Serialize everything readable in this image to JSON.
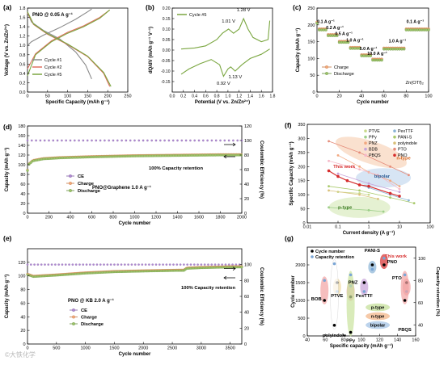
{
  "chart_data": [
    {
      "panel": "(a)",
      "type": "line",
      "annotation": "PNO @ 0.05 A g⁻¹",
      "xlabel": "Specific Capacity (mAh g⁻¹)",
      "ylabel": "Voltage (V vs. Zn/Zn²⁺)",
      "xlim": [
        0,
        250
      ],
      "ylim": [
        0,
        1.8
      ],
      "xticks": [
        "0",
        "50",
        "100",
        "150",
        "200",
        "250"
      ],
      "yticks": [
        "0.0",
        "0.2",
        "0.4",
        "0.6",
        "0.8",
        "1.0",
        "1.2",
        "1.4",
        "1.6",
        "1.8"
      ],
      "legend": [
        "Cycle #1",
        "Cycle #2",
        "Cycle #5"
      ],
      "series": [
        {
          "name": "Cycle #1",
          "color": "#8a8a8a",
          "charge": [
            [
              0,
              1.0
            ],
            [
              10,
              1.08
            ],
            [
              40,
              1.22
            ],
            [
              80,
              1.38
            ],
            [
              120,
              1.56
            ],
            [
              150,
              1.72
            ],
            [
              160,
              1.78
            ]
          ],
          "discharge": [
            [
              0,
              1.7
            ],
            [
              10,
              1.5
            ],
            [
              40,
              1.32
            ],
            [
              80,
              1.14
            ],
            [
              120,
              0.86
            ],
            [
              145,
              0.58
            ],
            [
              160,
              0.28
            ]
          ]
        },
        {
          "name": "Cycle #2",
          "color": "#e07060",
          "charge": [
            [
              0,
              0.5
            ],
            [
              20,
              0.82
            ],
            [
              60,
              1.1
            ],
            [
              100,
              1.28
            ],
            [
              140,
              1.42
            ],
            [
              180,
              1.6
            ],
            [
              205,
              1.76
            ]
          ],
          "discharge": [
            [
              0,
              1.7
            ],
            [
              15,
              1.45
            ],
            [
              50,
              1.24
            ],
            [
              100,
              1.02
            ],
            [
              150,
              0.76
            ],
            [
              190,
              0.4
            ],
            [
              205,
              0.12
            ]
          ]
        },
        {
          "name": "Cycle #5",
          "color": "#7aa640",
          "charge": [
            [
              0,
              0.35
            ],
            [
              20,
              0.8
            ],
            [
              60,
              1.08
            ],
            [
              100,
              1.26
            ],
            [
              140,
              1.4
            ],
            [
              180,
              1.58
            ],
            [
              205,
              1.76
            ]
          ],
          "discharge": [
            [
              0,
              1.72
            ],
            [
              15,
              1.46
            ],
            [
              50,
              1.25
            ],
            [
              100,
              1.03
            ],
            [
              150,
              0.77
            ],
            [
              190,
              0.42
            ],
            [
              208,
              0.12
            ]
          ]
        }
      ]
    },
    {
      "panel": "(b)",
      "type": "line",
      "legend": [
        "Cycle #5"
      ],
      "xlabel": "Potential (V vs. Zn/Zn²⁺)",
      "ylabel": "dQ/dV (mAh g⁻¹ V⁻¹)",
      "xlim": [
        0,
        1.8
      ],
      "ylim": [
        -0.2,
        0.2
      ],
      "xticks": [
        "0.0",
        "0.2",
        "0.4",
        "0.6",
        "0.8",
        "1.0",
        "1.2",
        "1.4",
        "1.6",
        "1.8"
      ],
      "yticks": [
        "-0.15",
        "-0.10",
        "-0.05",
        "0.00",
        "0.05",
        "0.10",
        "0.15",
        "0.20"
      ],
      "peaks": [
        "1.01 V",
        "1.28 V",
        "0.92 V",
        "1.13 V"
      ],
      "series": [
        {
          "name": "Cycle #5",
          "color": "#7aa640",
          "upper": [
            [
              0.16,
              0.005
            ],
            [
              0.4,
              0.01
            ],
            [
              0.6,
              0.02
            ],
            [
              0.8,
              0.05
            ],
            [
              0.9,
              0.08
            ],
            [
              1.01,
              0.1
            ],
            [
              1.1,
              0.08
            ],
            [
              1.2,
              0.1
            ],
            [
              1.28,
              0.15
            ],
            [
              1.36,
              0.1
            ],
            [
              1.45,
              0.06
            ],
            [
              1.6,
              0.04
            ],
            [
              1.72,
              0.05
            ],
            [
              1.75,
              0.14
            ]
          ],
          "lower": [
            [
              0.16,
              -0.115
            ],
            [
              0.3,
              -0.09
            ],
            [
              0.5,
              -0.065
            ],
            [
              0.7,
              -0.045
            ],
            [
              0.85,
              -0.07
            ],
            [
              0.92,
              -0.125
            ],
            [
              1.0,
              -0.09
            ],
            [
              1.05,
              -0.08
            ],
            [
              1.13,
              -0.1
            ],
            [
              1.25,
              -0.07
            ],
            [
              1.4,
              -0.04
            ],
            [
              1.6,
              -0.02
            ],
            [
              1.75,
              0.005
            ]
          ]
        }
      ]
    },
    {
      "panel": "(c)",
      "type": "scatter",
      "annotation": "Zn(OTf)₂",
      "xlabel": "Cycle number",
      "ylabel": "Capacity (mAh g⁻¹)",
      "xlim": [
        0,
        100
      ],
      "ylim": [
        0,
        250
      ],
      "xticks": [
        "0",
        "20",
        "40",
        "60",
        "80",
        "100"
      ],
      "yticks": [
        "0",
        "50",
        "100",
        "150",
        "200",
        "250"
      ],
      "legend": [
        "Charge",
        "Discharge"
      ],
      "rates": [
        {
          "label": "0.1 A g⁻¹",
          "start": 0,
          "end": 10,
          "capacity": 185
        },
        {
          "label": "0.2 A g⁻¹",
          "start": 10,
          "end": 20,
          "capacity": 168
        },
        {
          "label": "0.5 A g⁻¹",
          "start": 20,
          "end": 30,
          "capacity": 148
        },
        {
          "label": "1.0 A g⁻¹",
          "start": 30,
          "end": 40,
          "capacity": 130
        },
        {
          "label": "5.0 A g⁻¹",
          "start": 40,
          "end": 50,
          "capacity": 108
        },
        {
          "label": "10.0 A g⁻¹",
          "start": 50,
          "end": 60,
          "capacity": 95
        },
        {
          "label": "1.0 A g⁻¹",
          "start": 60,
          "end": 80,
          "capacity": 128
        },
        {
          "label": "0.1 A g⁻¹",
          "start": 80,
          "end": 100,
          "capacity": 185
        }
      ]
    },
    {
      "panel": "(d)",
      "type": "scatter",
      "annotation": "PNO@Graphene  1.0 A g⁻¹",
      "retention_label": "100% Capacity retention",
      "xlabel": "Cycle number",
      "ylabel": "Capacity (mAh g⁻¹)",
      "y2label": "Coulombic Efficiency (%)",
      "xlim": [
        0,
        2000
      ],
      "ylim": [
        0,
        180
      ],
      "y2lim": [
        0,
        120
      ],
      "xticks": [
        "0",
        "200",
        "400",
        "600",
        "800",
        "1000",
        "1200",
        "1400",
        "1600",
        "1800",
        "2000"
      ],
      "yticks": [
        "0",
        "20",
        "40",
        "60",
        "80",
        "100",
        "120",
        "140",
        "160",
        "180"
      ],
      "y2ticks": [
        "0",
        "20",
        "40",
        "60",
        "80",
        "100",
        "120"
      ],
      "legend": [
        "CE",
        "Charge",
        "Discharge"
      ],
      "ce": 100,
      "capacity": [
        [
          0,
          88
        ],
        [
          10,
          100
        ],
        [
          50,
          108
        ],
        [
          150,
          112
        ],
        [
          300,
          114
        ],
        [
          600,
          116
        ],
        [
          1000,
          118
        ],
        [
          1400,
          119
        ],
        [
          1800,
          120
        ],
        [
          2000,
          120
        ]
      ]
    },
    {
      "panel": "(e)",
      "type": "scatter",
      "annotation": "PNO @ KB  2.0 A g⁻¹",
      "retention_label": "100% Capacity retention",
      "xlabel": "Cycle number",
      "ylabel": "Capacity (mAh g⁻¹)",
      "y2label": "Coulombic Efficiency (%)",
      "xlim": [
        0,
        3700
      ],
      "ylim": [
        0,
        140
      ],
      "y2lim": [
        0,
        120
      ],
      "xticks": [
        "0",
        "500",
        "1000",
        "1500",
        "2000",
        "2500",
        "3000",
        "3500"
      ],
      "yticks": [
        "0",
        "20",
        "40",
        "60",
        "80",
        "100",
        "120"
      ],
      "y2ticks": [
        "0",
        "20",
        "40",
        "60",
        "80",
        "100"
      ],
      "legend": [
        "CE",
        "Charge",
        "Discharge"
      ],
      "ce": 100,
      "capacity": [
        [
          0,
          102
        ],
        [
          100,
          99
        ],
        [
          500,
          101
        ],
        [
          1000,
          104
        ],
        [
          1500,
          106
        ],
        [
          2000,
          107
        ],
        [
          2600,
          108
        ],
        [
          2700,
          108
        ],
        [
          2750,
          111
        ],
        [
          3000,
          112
        ],
        [
          3500,
          113
        ],
        [
          3700,
          113
        ]
      ]
    },
    {
      "panel": "(f)",
      "type": "scatter",
      "xlabel": "Current density (A g⁻¹)",
      "ylabel": "Specific Capacity (mAh g⁻¹)",
      "xscale": "log",
      "xlim": [
        0.01,
        100
      ],
      "ylim": [
        0,
        350
      ],
      "xticks": [
        "0.01",
        "0.1",
        "1",
        "10",
        "100"
      ],
      "yticks": [
        "0",
        "50",
        "100",
        "150",
        "200",
        "250",
        "300",
        "350"
      ],
      "legend": [
        "PTVE",
        "PPy",
        "PNZ",
        "BDB",
        "PBQS",
        "PexTTF",
        "PANI-S",
        "polyindole",
        "PTO",
        "PNO"
      ],
      "region_labels": [
        "n-type",
        "bipolar",
        "p-type"
      ],
      "highlight": "This work",
      "series": [
        {
          "name": "PTVE",
          "color": "#c9d98c",
          "points": [
            [
              0.1,
              110
            ],
            [
              0.5,
              105
            ],
            [
              1,
              100
            ]
          ]
        },
        {
          "name": "PPy",
          "color": "#9ecf8a",
          "points": [
            [
              0.05,
              55
            ],
            [
              0.2,
              50
            ],
            [
              1,
              45
            ],
            [
              3,
              40
            ]
          ]
        },
        {
          "name": "PNZ",
          "color": "#f2a880",
          "points": [
            [
              0.1,
              240
            ],
            [
              0.5,
              200
            ],
            [
              1,
              180
            ],
            [
              5,
              150
            ],
            [
              10,
              130
            ]
          ]
        },
        {
          "name": "BDB",
          "color": "#c7a3d9",
          "points": [
            [
              0.1,
              175
            ],
            [
              1,
              140
            ],
            [
              10,
              110
            ]
          ]
        },
        {
          "name": "PBQS",
          "color": "#f5b8c8",
          "points": [
            [
              0.05,
              220
            ],
            [
              0.5,
              190
            ],
            [
              2,
              170
            ],
            [
              10,
              120
            ]
          ]
        },
        {
          "name": "PexTTF",
          "color": "#8ab4d6",
          "points": [
            [
              0.2,
              150
            ],
            [
              1,
              125
            ],
            [
              5,
              100
            ],
            [
              20,
              80
            ]
          ]
        },
        {
          "name": "PANI-S",
          "color": "#a8c96a",
          "points": [
            [
              0.05,
              130
            ],
            [
              0.5,
              115
            ],
            [
              5,
              90
            ],
            [
              30,
              70
            ]
          ]
        },
        {
          "name": "polyindole",
          "color": "#d9c07a",
          "points": [
            [
              0.05,
              115
            ],
            [
              0.5,
              100
            ],
            [
              2,
              85
            ]
          ]
        },
        {
          "name": "PTO",
          "color": "#e58c7a",
          "points": [
            [
              0.05,
              290
            ],
            [
              0.5,
              250
            ],
            [
              5,
              200
            ],
            [
              20,
              170
            ]
          ]
        },
        {
          "name": "PNO",
          "color": "#d62c2c",
          "points": [
            [
              0.05,
              185
            ],
            [
              0.1,
              165
            ],
            [
              0.2,
              150
            ],
            [
              0.5,
              135
            ],
            [
              1,
              130
            ],
            [
              5,
              105
            ],
            [
              10,
              95
            ]
          ]
        }
      ]
    },
    {
      "panel": "(g)",
      "type": "scatter",
      "xlabel": "Specific capacity (mAh g⁻¹)",
      "ylabel": "Cycle number",
      "y2label": "Capacity retention (%)",
      "xlim": [
        40,
        160
      ],
      "ylim": [
        0,
        2500
      ],
      "y2lim": [
        30,
        110
      ],
      "xticks": [
        "40",
        "60",
        "80",
        "100",
        "120",
        "140",
        "160"
      ],
      "yticks": [
        "0",
        "500",
        "1000",
        "1500",
        "2000"
      ],
      "y2ticks": [
        "40",
        "60",
        "80",
        "100"
      ],
      "legend": [
        "Cycle number",
        "Capacity retention"
      ],
      "region_labels": [
        "p-type",
        "n-type",
        "bipolar"
      ],
      "highlight": "This work",
      "materials": [
        {
          "name": "BOB",
          "capacity": 59,
          "cycles": 1000,
          "retention": 80,
          "color": "#f2a3a3"
        },
        {
          "name": "PTVE",
          "capacity": 73,
          "cycles": 1500,
          "retention": 70,
          "color": "#f0d9a0"
        },
        {
          "name": "polyindole",
          "capacity": 70,
          "cycles": 300,
          "retention": 95,
          "color": "#ffffff"
        },
        {
          "name": "PNZ",
          "capacity": 88,
          "cycles": 1100,
          "retention": 75,
          "color": "#f2a3a3"
        },
        {
          "name": "PPy",
          "capacity": 88,
          "cycles": 100,
          "retention": 85,
          "color": "#c9e39c"
        },
        {
          "name": "PexTTF",
          "capacity": 103,
          "cycles": 1500,
          "retention": 70,
          "color": "#c7a3d9"
        },
        {
          "name": "PANI-S",
          "capacity": 112,
          "cycles": 2000,
          "retention": 90,
          "color": "#8ab4d6"
        },
        {
          "name": "PNO",
          "capacity": 125,
          "cycles": 2000,
          "retention": 100,
          "color": "#d62c2c"
        },
        {
          "name": "PTO",
          "capacity": 150,
          "cycles": 1500,
          "retention": 70,
          "color": "#f2a3a3"
        },
        {
          "name": "PBQS",
          "capacity": 148,
          "cycles": 1000,
          "retention": 85,
          "color": "#f2a3a3"
        }
      ]
    }
  ],
  "watermark": "©大铁化学"
}
